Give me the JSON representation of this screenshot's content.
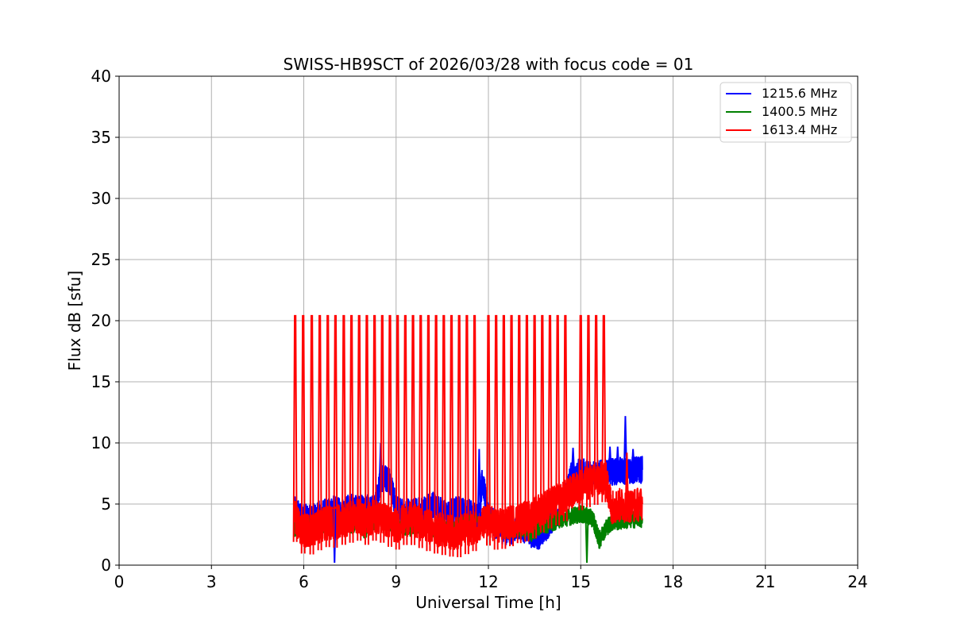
{
  "chart_data": {
    "type": "line",
    "title": "SWISS-HB9SCT of 2026/03/28 with focus code = 01",
    "xlabel": "Universal Time [h]",
    "ylabel": "Flux dB [sfu]",
    "xlim": [
      0,
      24
    ],
    "ylim": [
      0,
      40
    ],
    "xticks": [
      "0",
      "3",
      "6",
      "9",
      "12",
      "15",
      "18",
      "21",
      "24"
    ],
    "yticks": [
      "0",
      "5",
      "10",
      "15",
      "20",
      "25",
      "30",
      "35",
      "40"
    ],
    "grid": true,
    "legend_position": "top-right",
    "series": [
      {
        "name": "1215.6 MHz",
        "color": "#0000ff",
        "x": [
          5.7,
          5.9,
          6.2,
          6.5,
          6.8,
          7.0,
          7.2,
          7.5,
          7.8,
          8.0,
          8.3,
          8.5,
          8.6,
          8.8,
          9.0,
          9.4,
          9.8,
          10.2,
          10.6,
          11.0,
          11.4,
          11.7,
          11.8,
          12.0,
          12.3,
          12.6,
          13.0,
          13.4,
          13.7,
          14.0,
          14.4,
          14.7,
          15.0,
          15.3,
          15.6,
          15.9,
          16.2,
          16.5,
          16.8,
          17.0
        ],
        "values": [
          4.5,
          4.0,
          3.8,
          4.2,
          4.4,
          4.6,
          4.3,
          4.8,
          4.6,
          4.7,
          4.5,
          7.0,
          7.2,
          7.0,
          4.6,
          4.3,
          4.5,
          5.0,
          4.2,
          4.6,
          4.3,
          4.0,
          7.0,
          4.1,
          3.0,
          2.6,
          3.2,
          2.5,
          2.4,
          3.5,
          4.8,
          7.5,
          7.6,
          7.6,
          7.5,
          7.6,
          7.7,
          7.7,
          7.8,
          7.8
        ]
      },
      {
        "name": "1400.5 MHz",
        "color": "#008000",
        "x": [
          5.7,
          5.9,
          6.2,
          6.5,
          6.8,
          7.0,
          7.2,
          7.5,
          7.8,
          8.0,
          8.3,
          8.6,
          9.0,
          9.4,
          9.8,
          10.2,
          10.6,
          11.0,
          11.4,
          11.8,
          12.0,
          12.3,
          12.6,
          13.0,
          13.4,
          13.7,
          14.0,
          14.4,
          14.7,
          15.0,
          15.2,
          15.4,
          15.6,
          15.8,
          16.0,
          16.3,
          16.6,
          17.0
        ],
        "values": [
          3.0,
          2.8,
          3.2,
          3.4,
          3.0,
          3.2,
          3.4,
          3.2,
          3.5,
          2.8,
          3.6,
          3.8,
          3.2,
          3.0,
          3.2,
          2.8,
          3.0,
          3.2,
          3.4,
          3.6,
          3.8,
          3.2,
          2.8,
          3.0,
          2.6,
          3.2,
          3.4,
          3.8,
          4.0,
          4.2,
          4.0,
          3.8,
          2.0,
          3.0,
          3.5,
          3.6,
          3.7,
          3.8
        ]
      },
      {
        "name": "1613.4 MHz",
        "color": "#ff0000",
        "x": [
          5.7,
          5.9,
          6.2,
          6.5,
          6.8,
          7.0,
          7.2,
          7.5,
          7.8,
          8.0,
          8.3,
          8.6,
          9.0,
          9.4,
          9.8,
          10.2,
          10.6,
          11.0,
          11.4,
          11.8,
          12.0,
          12.3,
          12.6,
          13.0,
          13.4,
          13.7,
          14.0,
          14.4,
          14.7,
          15.0,
          15.3,
          15.6,
          15.8,
          16.0,
          16.3,
          16.6,
          17.0
        ],
        "values": [
          4.0,
          3.0,
          2.8,
          3.2,
          3.5,
          3.4,
          3.6,
          3.8,
          4.0,
          3.6,
          4.0,
          3.8,
          3.2,
          3.8,
          3.4,
          3.0,
          2.8,
          2.6,
          3.0,
          3.4,
          3.6,
          3.2,
          3.4,
          3.8,
          4.0,
          4.6,
          5.0,
          5.4,
          6.0,
          6.5,
          6.8,
          7.0,
          7.2,
          4.8,
          4.9,
          4.9,
          5.0
        ]
      }
    ],
    "spikes": {
      "color": "#ff0000",
      "peak": 20.4,
      "times": [
        5.72,
        5.98,
        6.26,
        6.52,
        6.78,
        7.03,
        7.3,
        7.55,
        7.8,
        8.05,
        8.3,
        8.55,
        8.8,
        9.05,
        9.3,
        9.55,
        9.8,
        10.05,
        10.3,
        10.55,
        10.8,
        11.05,
        11.3,
        11.55,
        12.0,
        12.25,
        12.5,
        12.75,
        13.0,
        13.25,
        13.5,
        13.75,
        14.0,
        14.25,
        14.5,
        15.0,
        15.25,
        15.5,
        15.75
      ]
    },
    "other_spikes": [
      {
        "series": "1215.6 MHz",
        "x": 8.5,
        "value": 10.0
      },
      {
        "series": "1215.6 MHz",
        "x": 11.7,
        "value": 9.5
      },
      {
        "series": "1215.6 MHz",
        "x": 14.75,
        "value": 9.6
      },
      {
        "series": "1215.6 MHz",
        "x": 15.95,
        "value": 9.7
      },
      {
        "series": "1215.6 MHz",
        "x": 16.2,
        "value": 9.7
      },
      {
        "series": "1215.6 MHz",
        "x": 16.45,
        "value": 12.2
      },
      {
        "series": "1215.6 MHz",
        "x": 16.7,
        "value": 9.5
      },
      {
        "series": "1400.5 MHz",
        "x": 15.2,
        "value": 0.2
      },
      {
        "series": "1215.6 MHz",
        "x": 7.0,
        "value": 0.2
      },
      {
        "series": "1613.4 MHz",
        "x": 16.5,
        "value": 9.2
      }
    ]
  }
}
